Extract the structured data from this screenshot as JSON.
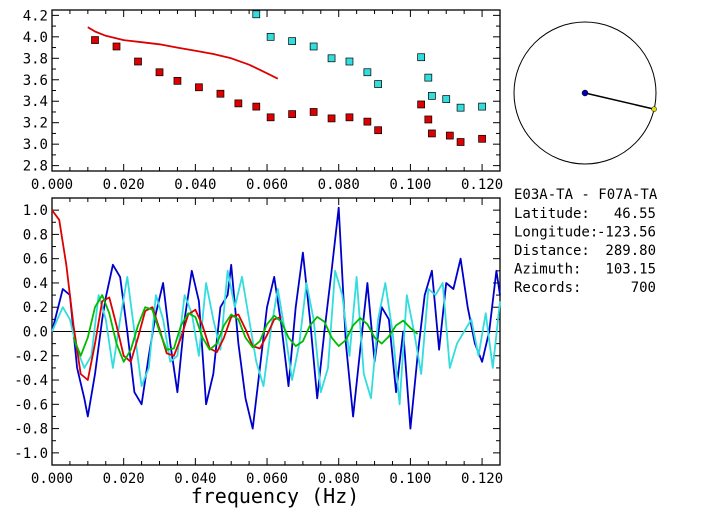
{
  "info": {
    "station_pair": "E03A-TA - F07A-TA",
    "rows": [
      {
        "label": "Latitude:",
        "value": "46.55"
      },
      {
        "label": "Longitude:",
        "value": "-123.56"
      },
      {
        "label": "Distance:",
        "value": "289.80"
      },
      {
        "label": "Azimuth:",
        "value": "103.15"
      },
      {
        "label": "Records:",
        "value": "700"
      }
    ]
  },
  "colors": {
    "red": "#dd0000",
    "cyan": "#33dddd",
    "blue": "#0000cc",
    "green": "#00bb00",
    "black": "#000000"
  },
  "compass": {
    "azimuth_deg": 103.15
  },
  "chart_data": [
    {
      "type": "scatter",
      "panel": "top",
      "xlim": [
        0.0,
        0.125
      ],
      "ylim": [
        2.75,
        4.25
      ],
      "xticks": [
        0.0,
        0.02,
        0.04,
        0.06,
        0.08,
        0.1,
        0.12
      ],
      "xtick_labels": [
        "0.000",
        "0.020",
        "0.040",
        "0.060",
        "0.080",
        "0.100",
        "0.120"
      ],
      "yticks": [
        2.8,
        3.0,
        3.2,
        3.4,
        3.6,
        3.8,
        4.0,
        4.2
      ],
      "ytick_labels": [
        "2.8",
        "3.0",
        "3.2",
        "3.4",
        "3.6",
        "3.8",
        "4.0",
        "4.2"
      ],
      "series": [
        {
          "color": "red",
          "mode": "markers",
          "x": [
            0.012,
            0.018,
            0.024,
            0.03,
            0.035,
            0.041,
            0.047,
            0.052,
            0.057,
            0.061,
            0.067,
            0.073,
            0.078,
            0.083,
            0.088,
            0.091,
            0.103,
            0.105,
            0.106,
            0.111,
            0.114,
            0.12
          ],
          "y": [
            3.97,
            3.91,
            3.77,
            3.67,
            3.59,
            3.53,
            3.47,
            3.38,
            3.35,
            3.25,
            3.28,
            3.3,
            3.24,
            3.25,
            3.21,
            3.13,
            3.37,
            3.23,
            3.1,
            3.08,
            3.02,
            3.05
          ]
        },
        {
          "color": "cyan",
          "mode": "markers",
          "x": [
            0.057,
            0.061,
            0.067,
            0.073,
            0.078,
            0.083,
            0.088,
            0.091,
            0.103,
            0.105,
            0.106,
            0.11,
            0.114,
            0.12
          ],
          "y": [
            4.21,
            4.0,
            3.96,
            3.91,
            3.8,
            3.77,
            3.67,
            3.56,
            3.81,
            3.62,
            3.45,
            3.42,
            3.34,
            3.35
          ]
        },
        {
          "color": "red",
          "mode": "line",
          "x": [
            0.01,
            0.012,
            0.015,
            0.02,
            0.025,
            0.03,
            0.035,
            0.04,
            0.045,
            0.05,
            0.055,
            0.06,
            0.063
          ],
          "y": [
            4.09,
            4.05,
            4.01,
            3.97,
            3.95,
            3.93,
            3.9,
            3.87,
            3.84,
            3.8,
            3.74,
            3.66,
            3.61
          ]
        }
      ]
    },
    {
      "type": "line",
      "panel": "bottom",
      "xlabel": "frequency (Hz)",
      "xlim": [
        0.0,
        0.125
      ],
      "ylim": [
        -1.1,
        1.1
      ],
      "xticks": [
        0.0,
        0.02,
        0.04,
        0.06,
        0.08,
        0.1,
        0.12
      ],
      "xtick_labels": [
        "0.000",
        "0.020",
        "0.040",
        "0.060",
        "0.080",
        "0.100",
        "0.120"
      ],
      "yticks": [
        -1.0,
        -0.8,
        -0.6,
        -0.4,
        -0.2,
        0.0,
        0.2,
        0.4,
        0.6,
        0.8,
        1.0
      ],
      "ytick_labels": [
        "-1.0",
        "-0.8",
        "-0.6",
        "-0.4",
        "-0.2",
        "0.0",
        "0.2",
        "0.4",
        "0.6",
        "0.8",
        "1.0"
      ],
      "series": [
        {
          "color": "blue",
          "x": [
            0.0,
            0.003,
            0.005,
            0.007,
            0.009,
            0.01,
            0.012,
            0.014,
            0.015,
            0.017,
            0.019,
            0.021,
            0.023,
            0.025,
            0.027,
            0.029,
            0.031,
            0.033,
            0.035,
            0.037,
            0.039,
            0.041,
            0.043,
            0.045,
            0.047,
            0.049,
            0.05,
            0.052,
            0.054,
            0.056,
            0.058,
            0.06,
            0.062,
            0.064,
            0.066,
            0.068,
            0.07,
            0.072,
            0.074,
            0.076,
            0.078,
            0.08,
            0.082,
            0.084,
            0.086,
            0.088,
            0.09,
            0.092,
            0.094,
            0.096,
            0.098,
            0.1,
            0.102,
            0.104,
            0.106,
            0.108,
            0.11,
            0.112,
            0.114,
            0.116,
            0.118,
            0.12,
            0.122,
            0.124,
            0.125
          ],
          "y": [
            0.0,
            0.35,
            0.3,
            -0.3,
            -0.55,
            -0.7,
            -0.35,
            0.1,
            0.28,
            0.55,
            0.45,
            0.0,
            -0.5,
            -0.6,
            -0.2,
            0.15,
            0.4,
            -0.1,
            -0.5,
            0.1,
            0.5,
            0.25,
            -0.6,
            -0.35,
            0.2,
            0.3,
            0.55,
            -0.1,
            -0.55,
            -0.8,
            -0.3,
            0.2,
            0.45,
            0.05,
            -0.45,
            0.2,
            0.65,
            0.1,
            -0.55,
            0.0,
            0.5,
            1.02,
            -0.1,
            -0.7,
            -0.15,
            0.4,
            -0.25,
            0.2,
            0.1,
            -0.5,
            0.0,
            -0.8,
            -0.2,
            0.3,
            0.5,
            -0.15,
            0.4,
            0.35,
            0.6,
            0.2,
            -0.1,
            -0.25,
            0.0,
            0.5,
            0.3
          ]
        },
        {
          "color": "cyan",
          "x": [
            0.0,
            0.003,
            0.005,
            0.007,
            0.009,
            0.011,
            0.013,
            0.015,
            0.017,
            0.019,
            0.021,
            0.023,
            0.025,
            0.027,
            0.029,
            0.031,
            0.033,
            0.035,
            0.037,
            0.039,
            0.041,
            0.043,
            0.045,
            0.047,
            0.049,
            0.051,
            0.053,
            0.055,
            0.057,
            0.059,
            0.061,
            0.063,
            0.065,
            0.067,
            0.069,
            0.071,
            0.073,
            0.075,
            0.077,
            0.079,
            0.081,
            0.083,
            0.085,
            0.087,
            0.089,
            0.091,
            0.093,
            0.095,
            0.097,
            0.099,
            0.101,
            0.103,
            0.105,
            0.107,
            0.109,
            0.111,
            0.113,
            0.115,
            0.117,
            0.119,
            0.121,
            0.123,
            0.125
          ],
          "y": [
            0.0,
            0.2,
            0.1,
            -0.15,
            -0.3,
            -0.2,
            0.3,
            0.1,
            -0.3,
            0.1,
            0.45,
            0.0,
            -0.45,
            -0.3,
            0.3,
            0.1,
            -0.25,
            -0.2,
            0.3,
            0.15,
            -0.2,
            0.4,
            0.1,
            -0.15,
            0.5,
            0.2,
            0.45,
            0.1,
            -0.25,
            -0.45,
            0.0,
            0.35,
            0.0,
            -0.4,
            -0.1,
            0.4,
            0.1,
            -0.5,
            -0.3,
            0.5,
            0.3,
            -0.2,
            0.45,
            -0.35,
            -0.55,
            0.1,
            0.4,
            0.0,
            -0.6,
            0.3,
            0.0,
            -0.35,
            0.35,
            0.3,
            0.4,
            -0.3,
            -0.1,
            0.0,
            0.1,
            -0.2,
            0.15,
            -0.3,
            0.25
          ]
        },
        {
          "color": "red",
          "x": [
            0.0,
            0.002,
            0.004,
            0.006,
            0.008,
            0.01,
            0.012,
            0.014,
            0.016,
            0.018,
            0.02,
            0.022,
            0.024,
            0.026,
            0.028,
            0.03,
            0.032,
            0.034,
            0.036,
            0.038,
            0.04,
            0.042,
            0.044,
            0.046,
            0.048,
            0.05,
            0.052,
            0.054,
            0.056,
            0.058,
            0.06,
            0.062,
            0.064
          ],
          "y": [
            1.0,
            0.92,
            0.55,
            0.05,
            -0.35,
            -0.4,
            -0.1,
            0.25,
            0.28,
            0.05,
            -0.2,
            -0.25,
            -0.05,
            0.17,
            0.2,
            0.02,
            -0.18,
            -0.2,
            -0.05,
            0.14,
            0.18,
            0.05,
            -0.14,
            -0.17,
            -0.05,
            0.12,
            0.14,
            0.02,
            -0.12,
            -0.14,
            -0.03,
            0.1,
            0.12
          ]
        },
        {
          "color": "green",
          "x": [
            0.006,
            0.008,
            0.01,
            0.012,
            0.014,
            0.016,
            0.018,
            0.02,
            0.022,
            0.024,
            0.026,
            0.028,
            0.03,
            0.032,
            0.034,
            0.036,
            0.038,
            0.04,
            0.042,
            0.044,
            0.046,
            0.048,
            0.05,
            0.052,
            0.054,
            0.056,
            0.058,
            0.06,
            0.062,
            0.064,
            0.066,
            0.068,
            0.07,
            0.072,
            0.074,
            0.076,
            0.078,
            0.08,
            0.082,
            0.084,
            0.086,
            0.088,
            0.09,
            0.092,
            0.094,
            0.096,
            0.098,
            0.1,
            0.102
          ],
          "y": [
            -0.05,
            -0.2,
            -0.05,
            0.2,
            0.3,
            0.15,
            -0.1,
            -0.25,
            -0.15,
            0.05,
            0.2,
            0.18,
            0.0,
            -0.15,
            -0.14,
            0.05,
            0.15,
            0.12,
            -0.05,
            -0.15,
            -0.1,
            0.05,
            0.14,
            0.1,
            -0.05,
            -0.13,
            -0.08,
            0.06,
            0.13,
            0.08,
            -0.05,
            -0.12,
            -0.08,
            0.05,
            0.12,
            0.08,
            -0.05,
            -0.12,
            -0.07,
            0.05,
            0.11,
            0.06,
            -0.05,
            -0.1,
            -0.04,
            0.05,
            0.09,
            0.03,
            -0.02
          ]
        }
      ],
      "reference_line_y": 0.0
    }
  ]
}
